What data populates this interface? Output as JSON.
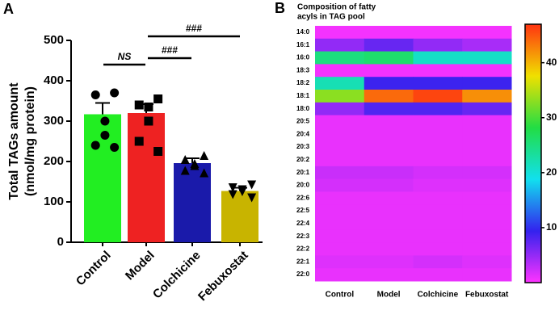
{
  "chart_data": [
    {
      "type": "bar",
      "panel": "A",
      "ylabel": [
        "Total TAGs amount",
        "(nmol/mg protein)"
      ],
      "categories": [
        "Control",
        "Model",
        "Colchicine",
        "Febuxostat"
      ],
      "values": [
        317,
        320,
        196,
        127
      ],
      "errors": [
        28,
        22,
        12,
        8
      ],
      "colors": [
        "#22ee22",
        "#ee2222",
        "#1a1aaa",
        "#c8b400"
      ],
      "markers": [
        "circle",
        "square",
        "triangle",
        "triangle-down"
      ],
      "points": [
        [
          370,
          365,
          300,
          265,
          240,
          235
        ],
        [
          355,
          340,
          335,
          300,
          250,
          225
        ],
        [
          215,
          205,
          195,
          190,
          178,
          172
        ],
        [
          142,
          135,
          130,
          125,
          118,
          110
        ]
      ],
      "annotations": [
        "NS",
        "###",
        "###"
      ],
      "ylim": [
        0,
        500
      ],
      "yticks": [
        0,
        100,
        200,
        300,
        400,
        500
      ]
    },
    {
      "type": "heatmap",
      "panel": "B",
      "title": [
        "Composition of fatty",
        "acyls in TAG pool"
      ],
      "columns": [
        "Control",
        "Model",
        "Colchicine",
        "Febuxostat"
      ],
      "rows": [
        "14:0",
        "16:1",
        "16:0",
        "18:3",
        "18:2",
        "18:1",
        "18:0",
        "20:5",
        "20:4",
        "20:3",
        "20:2",
        "20:1",
        "20:0",
        "22:6",
        "22:5",
        "22:4",
        "22:3",
        "22:2",
        "22:1",
        "22:0"
      ],
      "values": [
        [
          0.5,
          0.5,
          0.5,
          0.5
        ],
        [
          5,
          7,
          5,
          4
        ],
        [
          25,
          26,
          21,
          21
        ],
        [
          0.5,
          0.5,
          0.5,
          0.5
        ],
        [
          22,
          9,
          9,
          9
        ],
        [
          33,
          44,
          46,
          42
        ],
        [
          5,
          8,
          8,
          7
        ],
        [
          1,
          1,
          1,
          1
        ],
        [
          1,
          1,
          1,
          1
        ],
        [
          1,
          1,
          1,
          1
        ],
        [
          1,
          1,
          1,
          1
        ],
        [
          2.5,
          2.5,
          2,
          2
        ],
        [
          2,
          2,
          1.5,
          1.5
        ],
        [
          1,
          1,
          1,
          1
        ],
        [
          1,
          1,
          1,
          1
        ],
        [
          1,
          1,
          1,
          1
        ],
        [
          1,
          1,
          1,
          1
        ],
        [
          1,
          1,
          1,
          1
        ],
        [
          1.5,
          1.5,
          2,
          1.5
        ],
        [
          1,
          1,
          1,
          1
        ]
      ],
      "colorscale": [
        "#ff33ff",
        "#3322ee",
        "#11e0ee",
        "#22dd44",
        "#f0e000",
        "#ff3311"
      ],
      "zlim": [
        0,
        47
      ],
      "zticks": [
        10,
        20,
        30,
        40
      ]
    }
  ]
}
